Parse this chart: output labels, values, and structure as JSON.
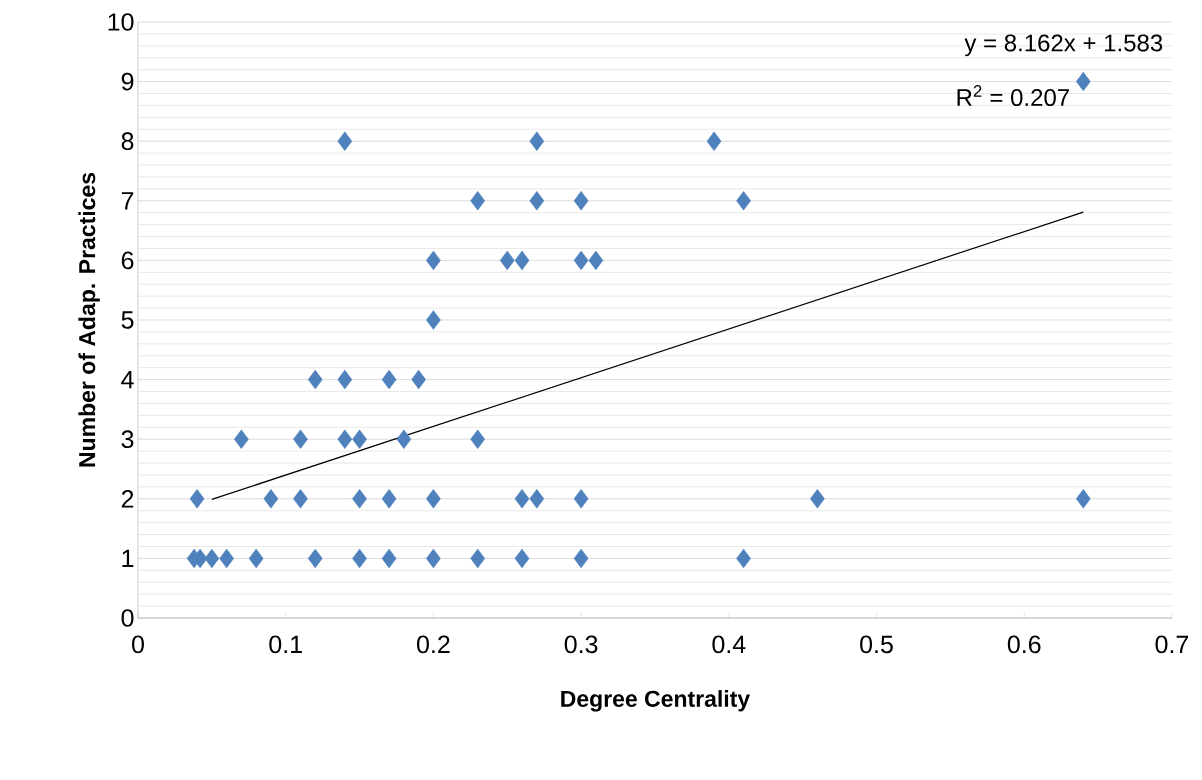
{
  "chart_data": {
    "type": "scatter",
    "xlabel": "Degree Centrality",
    "ylabel": "Number of Adap. Practices",
    "xlim": [
      0,
      0.7
    ],
    "ylim": [
      0,
      10
    ],
    "xticks": [
      0,
      0.1,
      0.2,
      0.3,
      0.4,
      0.5,
      0.6,
      0.7
    ],
    "yticks": [
      0,
      1,
      2,
      3,
      4,
      5,
      6,
      7,
      8,
      9,
      10
    ],
    "grid": "y",
    "marker": "diamond",
    "annotations": [
      "y = 8.162x + 1.583",
      "R$^{2}$ = 0.207"
    ],
    "series": [
      {
        "type": "scatter",
        "color": "#4f81bd",
        "x": [
          0.038,
          0.042,
          0.05,
          0.06,
          0.08,
          0.12,
          0.15,
          0.17,
          0.2,
          0.23,
          0.26,
          0.3,
          0.41,
          0.04,
          0.09,
          0.11,
          0.15,
          0.17,
          0.2,
          0.26,
          0.27,
          0.3,
          0.46,
          0.64,
          0.07,
          0.11,
          0.14,
          0.15,
          0.18,
          0.23,
          0.12,
          0.14,
          0.17,
          0.19,
          0.2,
          0.2,
          0.25,
          0.26,
          0.3,
          0.31,
          0.23,
          0.27,
          0.3,
          0.41,
          0.14,
          0.27,
          0.39,
          0.64
        ],
        "values": [
          1,
          1,
          1,
          1,
          1,
          1,
          1,
          1,
          1,
          1,
          1,
          1,
          1,
          2,
          2,
          2,
          2,
          2,
          2,
          2,
          2,
          2,
          2,
          2,
          3,
          3,
          3,
          3,
          3,
          3,
          4,
          4,
          4,
          4,
          5,
          6,
          6,
          6,
          6,
          6,
          7,
          7,
          7,
          7,
          8,
          8,
          8,
          9
        ]
      },
      {
        "type": "line",
        "color": "#000000",
        "marker": "none",
        "x": [
          0.05,
          0.64
        ],
        "values": [
          1.99,
          6.81
        ]
      }
    ]
  }
}
